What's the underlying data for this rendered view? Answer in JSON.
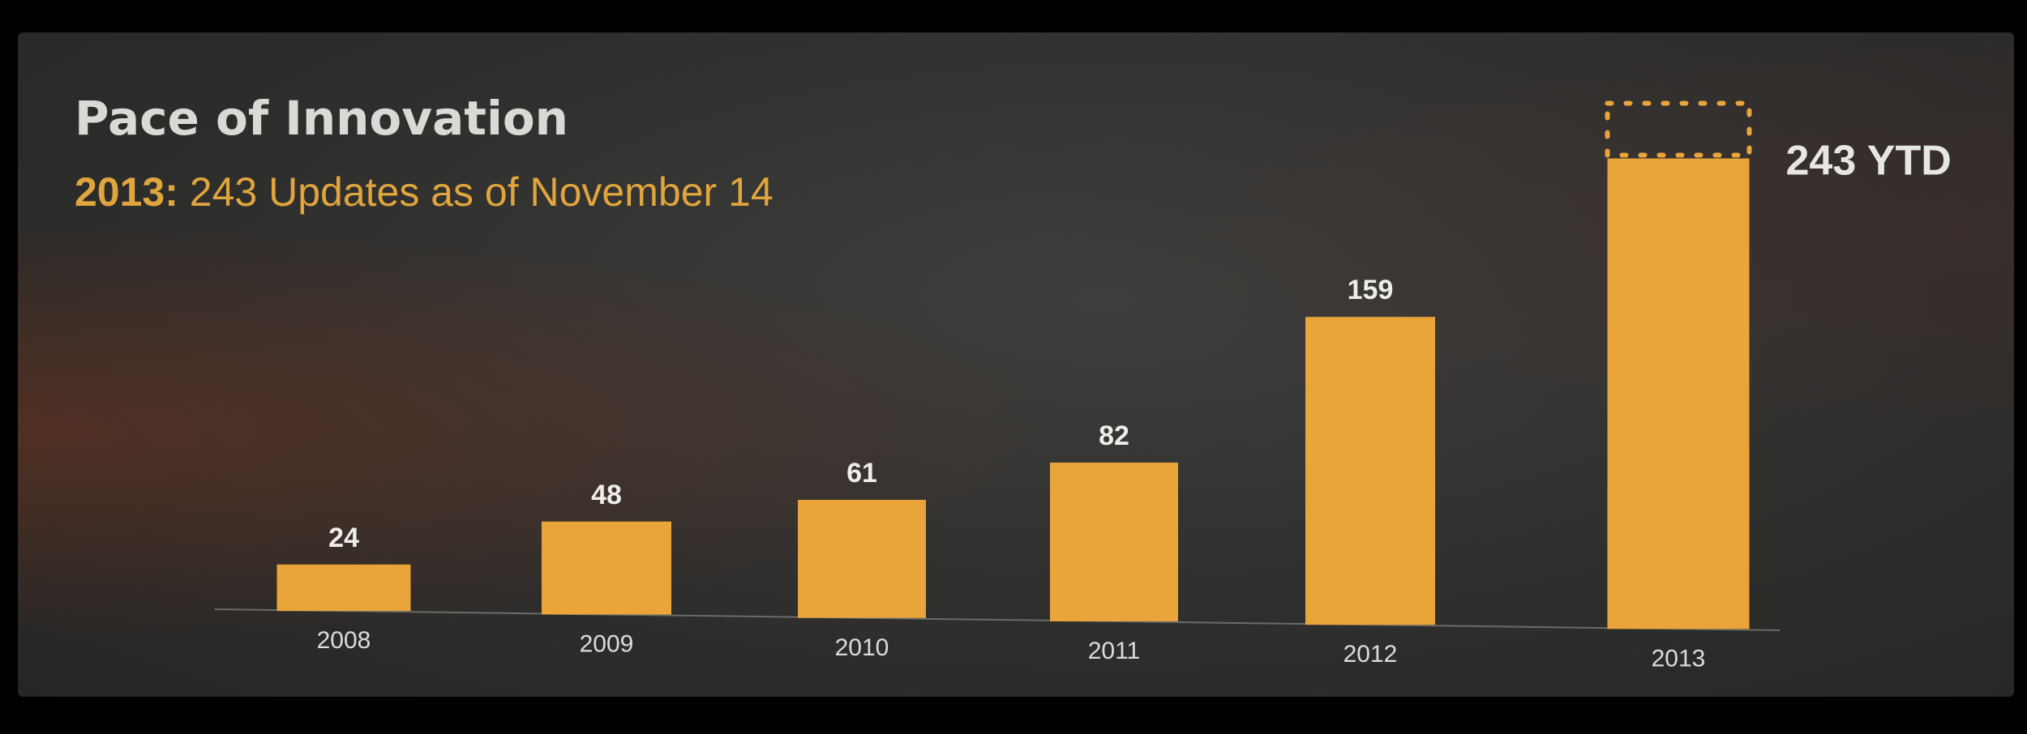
{
  "slide": {
    "title": "Pace of Innovation",
    "subtitle_lead": "2013:",
    "subtitle_rest": " 243 Updates as of November 14",
    "annotation": "243 YTD"
  },
  "colors": {
    "bar": "#e9a53a",
    "axis": "#6a6a66",
    "dotted_outline": "#e9a53a"
  },
  "chart_data": {
    "type": "bar",
    "title": "Pace of Innovation",
    "subtitle": "2013: 243 Updates as of November 14",
    "categories": [
      "2008",
      "2009",
      "2010",
      "2011",
      "2012",
      "2013"
    ],
    "values": [
      24,
      48,
      61,
      82,
      159,
      243
    ],
    "value_labels": [
      "24",
      "48",
      "61",
      "82",
      "159",
      ""
    ],
    "annotation": "243 YTD",
    "projected_extension_category": "2013",
    "xlabel": "",
    "ylabel": "",
    "grid": false
  }
}
